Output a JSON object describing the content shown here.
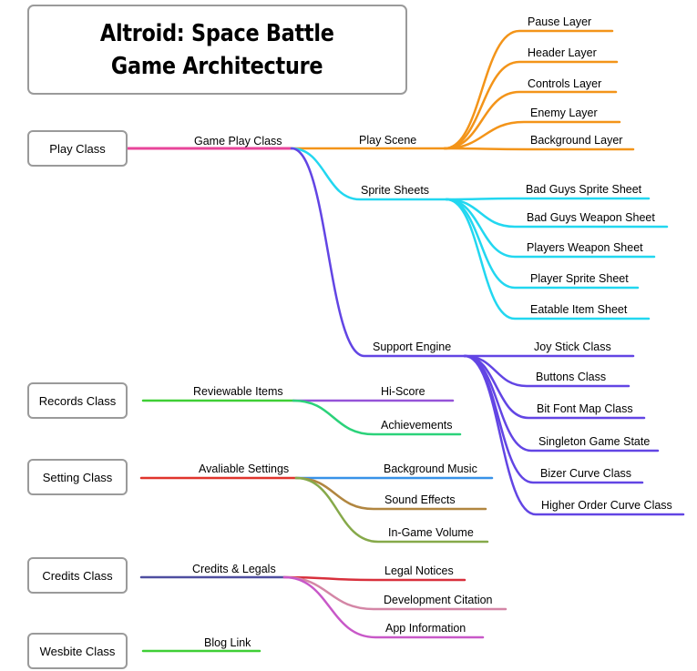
{
  "title": {
    "line1": "Altroid: Space Battle",
    "line2": "Game Architecture"
  },
  "roots": {
    "play": "Play Class",
    "records": "Records Class",
    "setting": "Setting Class",
    "credits": "Credits Class",
    "website": "Wesbite Class"
  },
  "branches": {
    "game_play": "Game Play Class",
    "reviewable": "Reviewable Items",
    "settings": "Avaliable Settings",
    "credits": "Credits & Legals",
    "blog": "Blog Link"
  },
  "groups": {
    "play_scene": "Play Scene",
    "sprite_sheets": "Sprite Sheets",
    "support_engine": "Support Engine"
  },
  "leaves": {
    "play_scene": [
      "Pause Layer",
      "Header Layer",
      "Controls Layer",
      "Enemy Layer",
      "Background Layer"
    ],
    "sprite_sheets": [
      "Bad Guys Sprite Sheet",
      "Bad Guys Weapon Sheet",
      "Players Weapon Sheet",
      "Player Sprite Sheet",
      "Eatable Item Sheet"
    ],
    "support_engine": [
      "Joy Stick Class",
      "Buttons Class",
      "Bit Font Map Class",
      "Singleton Game State",
      "Bizer Curve Class",
      "Higher Order Curve Class"
    ],
    "reviewable": [
      "Hi-Score",
      "Achievements"
    ],
    "settings": [
      "Background Music",
      "Sound Effects",
      "In-Game Volume"
    ],
    "credits": [
      "Legal Notices",
      "Development Citation",
      "App Information"
    ]
  },
  "colors": {
    "pink": "#e8459a",
    "orange": "#f39419",
    "cyan": "#22d7f0",
    "purple": "#6245e4",
    "green": "#3fcf35",
    "violet": "#9553d8",
    "teal_green": "#2bd27a",
    "red": "#e0342c",
    "blue": "#3892e8",
    "brown": "#b18640",
    "olive": "#86a94a",
    "navy": "#4e4ea0",
    "dark_red": "#d8303c",
    "rose": "#d486a6",
    "magenta": "#c858c8"
  }
}
